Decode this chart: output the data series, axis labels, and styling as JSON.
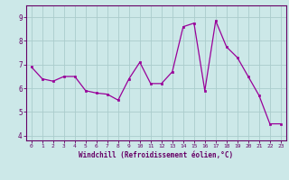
{
  "hours": [
    0,
    1,
    2,
    3,
    4,
    5,
    6,
    7,
    8,
    9,
    10,
    11,
    12,
    13,
    14,
    15,
    16,
    17,
    18,
    19,
    20,
    21,
    22,
    23
  ],
  "values": [
    6.9,
    6.4,
    6.3,
    6.5,
    6.5,
    5.9,
    5.8,
    5.75,
    5.5,
    6.4,
    7.1,
    6.2,
    6.2,
    6.7,
    8.6,
    8.75,
    5.9,
    8.85,
    7.75,
    7.3,
    6.5,
    5.7,
    4.5,
    4.5
  ],
  "line_color": "#990099",
  "marker_color": "#990099",
  "bg_color": "#cce8e8",
  "grid_color": "#aacccc",
  "xlabel": "Windchill (Refroidissement éolien,°C)",
  "ylim": [
    3.8,
    9.5
  ],
  "yticks": [
    4,
    5,
    6,
    7,
    8,
    9
  ],
  "ytick_labels": [
    "4",
    "5",
    "6",
    "7",
    "8",
    "9"
  ],
  "xticks": [
    0,
    1,
    2,
    3,
    4,
    5,
    6,
    7,
    8,
    9,
    10,
    11,
    12,
    13,
    14,
    15,
    16,
    17,
    18,
    19,
    20,
    21,
    22,
    23
  ],
  "tick_color": "#660066",
  "label_color": "#660066",
  "border_color": "#660066"
}
